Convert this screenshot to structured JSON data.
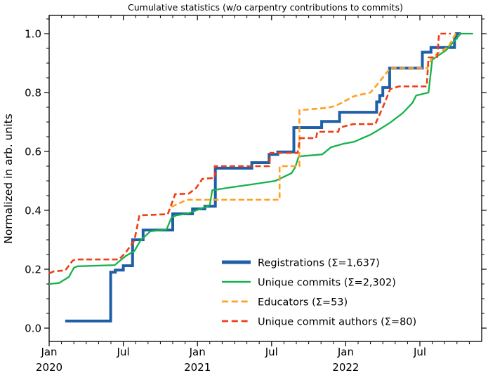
{
  "figure": {
    "title": "Cumulative statistics (w/o carpentry contributions to commits)",
    "ylabel": "Normalized in arb. units"
  },
  "chart_data": {
    "type": "line",
    "title": "Cumulative statistics (w/o carpentry contributions to commits)",
    "xlabel": "",
    "ylabel": "Normalized in arb. units",
    "x_unit": "months since 2020-01",
    "xlim": [
      0,
      35
    ],
    "ylim": [
      -0.045,
      1.062
    ],
    "grid": false,
    "legend_position": "lower-right-inside",
    "legend_frame": false,
    "x_major_ticks": [
      {
        "m": 0,
        "label": "Jan",
        "year": "2020"
      },
      {
        "m": 6,
        "label": "Jul",
        "year": ""
      },
      {
        "m": 12,
        "label": "Jan",
        "year": "2021"
      },
      {
        "m": 18,
        "label": "Jul",
        "year": ""
      },
      {
        "m": 24,
        "label": "Jan",
        "year": "2022"
      },
      {
        "m": 30,
        "label": "Jul",
        "year": ""
      }
    ],
    "x_minor_step_months": 1,
    "y_major_ticks": [
      "0.0",
      "0.2",
      "0.4",
      "0.6",
      "0.8",
      "1.0"
    ],
    "y_minor_step": 0.05,
    "series": [
      {
        "name": "Registrations",
        "legend_label": "Registrations  (Σ=1,637)",
        "total": "1,637",
        "color": "#1f5fa8",
        "style": "solid",
        "width": 4,
        "points": [
          [
            1.3,
            0.024
          ],
          [
            4.98,
            0.024
          ],
          [
            4.98,
            0.19
          ],
          [
            5.35,
            0.19
          ],
          [
            5.35,
            0.197
          ],
          [
            6.0,
            0.197
          ],
          [
            6.0,
            0.212
          ],
          [
            6.75,
            0.212
          ],
          [
            6.75,
            0.3
          ],
          [
            7.6,
            0.3
          ],
          [
            7.6,
            0.333
          ],
          [
            10.0,
            0.333
          ],
          [
            10.0,
            0.388
          ],
          [
            11.6,
            0.388
          ],
          [
            11.6,
            0.405
          ],
          [
            12.6,
            0.405
          ],
          [
            12.6,
            0.414
          ],
          [
            13.45,
            0.414
          ],
          [
            13.45,
            0.543
          ],
          [
            16.4,
            0.543
          ],
          [
            16.4,
            0.562
          ],
          [
            17.8,
            0.562
          ],
          [
            17.8,
            0.59
          ],
          [
            18.5,
            0.59
          ],
          [
            18.5,
            0.598
          ],
          [
            19.8,
            0.598
          ],
          [
            19.8,
            0.681
          ],
          [
            22.05,
            0.681
          ],
          [
            22.05,
            0.702
          ],
          [
            23.5,
            0.702
          ],
          [
            23.5,
            0.733
          ],
          [
            26.5,
            0.733
          ],
          [
            26.5,
            0.768
          ],
          [
            26.75,
            0.768
          ],
          [
            26.75,
            0.79
          ],
          [
            27.0,
            0.79
          ],
          [
            27.0,
            0.817
          ],
          [
            27.55,
            0.817
          ],
          [
            27.55,
            0.883
          ],
          [
            30.2,
            0.883
          ],
          [
            30.2,
            0.937
          ],
          [
            30.9,
            0.937
          ],
          [
            30.9,
            0.953
          ],
          [
            32.8,
            0.953
          ],
          [
            32.8,
            0.985
          ],
          [
            32.95,
            0.985
          ],
          [
            32.95,
            1.0
          ],
          [
            33.3,
            1.0
          ]
        ]
      },
      {
        "name": "Unique commits",
        "legend_label": "Unique commits (Σ=2,302)",
        "total": "2,302",
        "color": "#15b24b",
        "style": "solid",
        "width": 2.3,
        "points": [
          [
            0,
            0.15
          ],
          [
            0.8,
            0.153
          ],
          [
            1.6,
            0.174
          ],
          [
            2.0,
            0.205
          ],
          [
            2.3,
            0.21
          ],
          [
            5.3,
            0.214
          ],
          [
            6.2,
            0.245
          ],
          [
            6.9,
            0.262
          ],
          [
            7.4,
            0.298
          ],
          [
            8.2,
            0.329
          ],
          [
            9.5,
            0.335
          ],
          [
            9.9,
            0.375
          ],
          [
            10.3,
            0.383
          ],
          [
            11.3,
            0.39
          ],
          [
            11.9,
            0.4
          ],
          [
            12.7,
            0.412
          ],
          [
            13.0,
            0.418
          ],
          [
            13.2,
            0.468
          ],
          [
            14.7,
            0.478
          ],
          [
            16.4,
            0.488
          ],
          [
            18.3,
            0.5
          ],
          [
            19.6,
            0.526
          ],
          [
            19.9,
            0.545
          ],
          [
            20.2,
            0.583
          ],
          [
            22.1,
            0.59
          ],
          [
            22.8,
            0.614
          ],
          [
            23.8,
            0.626
          ],
          [
            24.7,
            0.633
          ],
          [
            26.0,
            0.657
          ],
          [
            26.5,
            0.669
          ],
          [
            27.6,
            0.698
          ],
          [
            28.6,
            0.73
          ],
          [
            29.4,
            0.765
          ],
          [
            29.7,
            0.79
          ],
          [
            30.7,
            0.8
          ],
          [
            31.0,
            0.912
          ],
          [
            32.1,
            0.943
          ],
          [
            32.7,
            0.971
          ],
          [
            33.3,
            1.0
          ],
          [
            34.3,
            1.0
          ]
        ]
      },
      {
        "name": "Educators",
        "legend_label": "Educators (Σ=53)",
        "total": "53",
        "color": "#ffa021",
        "style": "dashed",
        "width": 2.6,
        "points": [
          [
            9.9,
            0.412
          ],
          [
            10.9,
            0.431
          ],
          [
            11.3,
            0.436
          ],
          [
            18.65,
            0.436
          ],
          [
            18.65,
            0.55
          ],
          [
            20.25,
            0.55
          ],
          [
            20.25,
            0.74
          ],
          [
            22.5,
            0.748
          ],
          [
            23.2,
            0.755
          ],
          [
            24.7,
            0.788
          ],
          [
            26.0,
            0.8
          ],
          [
            26.6,
            0.83
          ],
          [
            27.6,
            0.883
          ],
          [
            30.6,
            0.883
          ],
          [
            31.0,
            0.92
          ],
          [
            31.7,
            0.94
          ],
          [
            32.3,
            0.955
          ],
          [
            32.9,
            1.0
          ],
          [
            33.2,
            1.0
          ]
        ]
      },
      {
        "name": "Unique commit authors",
        "legend_label": "Unique commit authors (Σ=80)",
        "total": "80",
        "color": "#ee3d17",
        "style": "dashed",
        "width": 2.6,
        "points": [
          [
            0,
            0.186
          ],
          [
            0.4,
            0.193
          ],
          [
            1.3,
            0.196
          ],
          [
            1.9,
            0.229
          ],
          [
            2.1,
            0.233
          ],
          [
            5.65,
            0.233
          ],
          [
            6.2,
            0.257
          ],
          [
            6.9,
            0.298
          ],
          [
            7.1,
            0.34
          ],
          [
            7.3,
            0.383
          ],
          [
            9.6,
            0.387
          ],
          [
            10.2,
            0.455
          ],
          [
            11.3,
            0.457
          ],
          [
            11.9,
            0.476
          ],
          [
            12.4,
            0.507
          ],
          [
            13.4,
            0.51
          ],
          [
            13.4,
            0.55
          ],
          [
            17.8,
            0.55
          ],
          [
            17.9,
            0.595
          ],
          [
            20.1,
            0.595
          ],
          [
            20.3,
            0.645
          ],
          [
            21.6,
            0.645
          ],
          [
            21.7,
            0.667
          ],
          [
            23.4,
            0.667
          ],
          [
            23.5,
            0.681
          ],
          [
            24.6,
            0.693
          ],
          [
            26.4,
            0.693
          ],
          [
            27.0,
            0.75
          ],
          [
            27.6,
            0.812
          ],
          [
            28.3,
            0.821
          ],
          [
            30.55,
            0.821
          ],
          [
            30.7,
            0.919
          ],
          [
            31.4,
            0.92
          ],
          [
            31.55,
            1.0
          ],
          [
            32.5,
            1.0
          ]
        ]
      }
    ]
  }
}
